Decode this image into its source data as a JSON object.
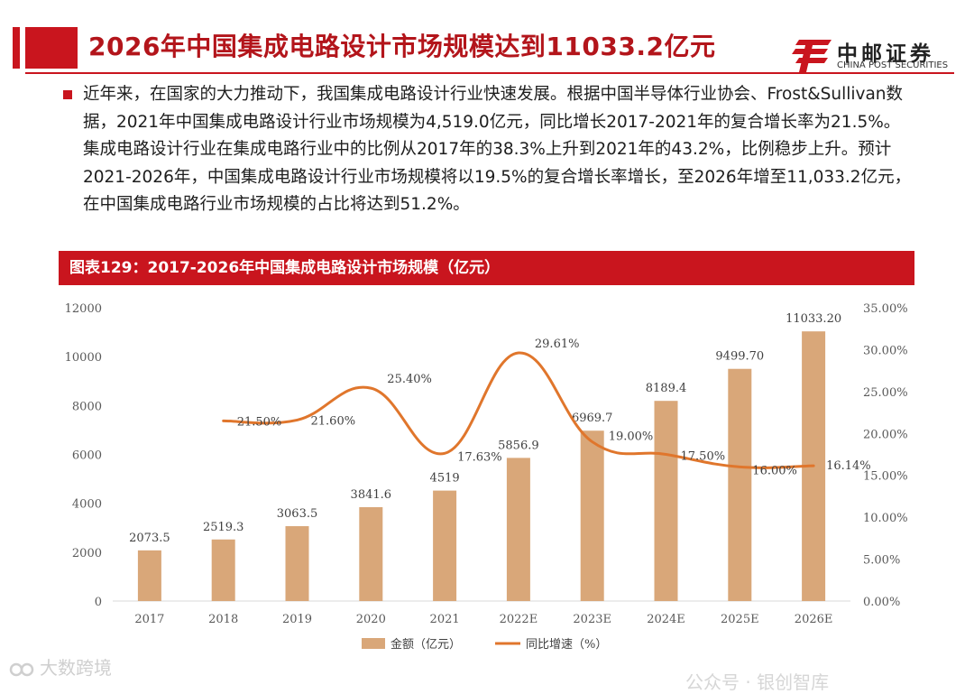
{
  "header": {
    "title": "2026年中国集成电路设计市场规模达到11033.2亿元",
    "logo_cn": "中邮证券",
    "logo_en": "CHINA POST SECURITIES"
  },
  "body": {
    "paragraph": "近年来，在国家的大力推动下，我国集成电路设计行业快速发展。根据中国半导体行业协会、Frost&Sullivan数据，2021年中国集成电路设计行业市场规模为4,519.0亿元，同比增长2017-2021年的复合增长率为21.5%。集成电路设计行业在集成电路行业中的比例从2017年的38.3%上升到2021年的43.2%，比例稳步上升。预计2021-2026年，中国集成电路设计行业市场规模将以19.5%的复合增长率增长，至2026年增至11,033.2亿元，在中国集成电路行业市场规模的占比将达到51.2%。"
  },
  "chart_header": "图表129：2017-2026年中国集成电路设计市场规模（亿元）",
  "watermark": "大数跨境",
  "footer_faint": "公众号 · 银创智库",
  "colors": {
    "accent": "#c9151e",
    "bar": "#d9a779",
    "line": "#e0762c"
  },
  "chart_data": {
    "type": "bar",
    "title": "2017-2026年中国集成电路设计市场规模（亿元）",
    "categories": [
      "2017",
      "2018",
      "2019",
      "2020",
      "2021",
      "2022E",
      "2023E",
      "2024E",
      "2025E",
      "2026E"
    ],
    "series": [
      {
        "name": "金额（亿元）",
        "type": "bar",
        "axis": "left",
        "values": [
          2073.5,
          2519.3,
          3063.5,
          3841.6,
          4519,
          5856.9,
          6969.7,
          8189.4,
          9499.7,
          11033.2
        ],
        "labels": [
          "2073.5",
          "2519.3",
          "3063.5",
          "3841.6",
          "4519",
          "5856.9",
          "6969.7",
          "8189.4",
          "9499.70",
          "11033.20"
        ]
      },
      {
        "name": "同比增速（%）",
        "type": "line",
        "axis": "right",
        "values": [
          null,
          21.5,
          21.6,
          25.4,
          17.63,
          29.61,
          19.0,
          17.5,
          16.0,
          16.14
        ],
        "labels": [
          "",
          "21.50%",
          "21.60%",
          "25.40%",
          "17.63%",
          "29.61%",
          "19.00%",
          "17.50%",
          "16.00%",
          "16.14%"
        ]
      }
    ],
    "y_left": {
      "min": 0,
      "max": 12000,
      "ticks": [
        "0",
        "2000",
        "4000",
        "6000",
        "8000",
        "10000",
        "12000"
      ]
    },
    "y_right": {
      "min": 0,
      "max": 35,
      "ticks": [
        "0.00%",
        "5.00%",
        "10.00%",
        "15.00%",
        "20.00%",
        "25.00%",
        "30.00%",
        "35.00%"
      ]
    },
    "legend": [
      "金额（亿元）",
      "同比增速（%）"
    ],
    "legend_position": "bottom"
  }
}
